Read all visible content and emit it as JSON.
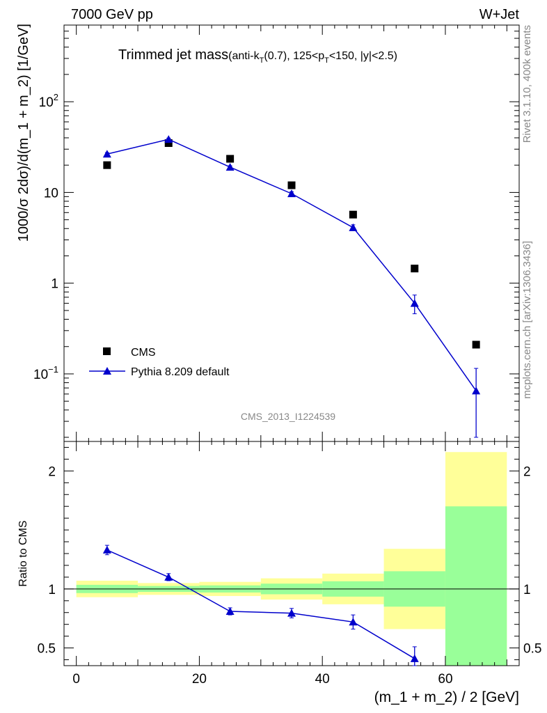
{
  "header": {
    "left": "7000 GeV pp",
    "right": "W+Jet"
  },
  "side_labels": {
    "rivet": "Rivet 3.1.10,  400k events",
    "source": "mcplots.cern.ch [arXiv:1306.3436]"
  },
  "analysis_tag": "CMS_2013_I1224539",
  "colors": {
    "cms": "#000000",
    "pythia": "#0000cc",
    "band_outer": "#ffff99",
    "band_inner": "#99ff99"
  },
  "chart_data": [
    {
      "type": "scatter",
      "title": "Trimmed jet mass",
      "title_main": "Trimmed jet mass",
      "title_sub_pre": "(anti-k",
      "title_sub_T1": "T",
      "title_sub_mid": "(0.7), 125<p",
      "title_sub_T2": "T",
      "title_sub_post": "<150, |y|<2.5)",
      "ylabel": "1000/σ 2dσ)/d(m_1 + m_2) [1/GeV]",
      "yscale": "log",
      "ylim": [
        0.018,
        700
      ],
      "xlim": [
        -2,
        72
      ],
      "y_ticks": [
        {
          "value": 0.1,
          "base": "10",
          "exp": "−1"
        },
        {
          "value": 1,
          "base": "1",
          "exp": ""
        },
        {
          "value": 10,
          "base": "10",
          "exp": ""
        },
        {
          "value": 100,
          "base": "10",
          "exp": "2"
        }
      ],
      "legend_position": "bottom-left",
      "series": [
        {
          "name": "CMS",
          "marker": "square",
          "x": [
            5,
            15,
            25,
            35,
            45,
            55,
            65
          ],
          "y": [
            20,
            35,
            23.5,
            12,
            5.7,
            1.45,
            0.21
          ]
        },
        {
          "name": "Pythia 8.209 default",
          "marker": "triangle",
          "line": true,
          "x": [
            5,
            15,
            25,
            35,
            45,
            55,
            65
          ],
          "y": [
            26.5,
            38.5,
            19,
            9.7,
            4.1,
            0.6,
            0.065
          ],
          "yerr_low": [
            1,
            1.2,
            0.7,
            0.5,
            0.3,
            0.14,
            0.045
          ],
          "yerr_high": [
            1,
            1.2,
            0.7,
            0.5,
            0.3,
            0.14,
            0.05
          ]
        }
      ]
    },
    {
      "type": "scatter",
      "title": "",
      "xlabel": "(m_1 + m_2) / 2 [GeV]",
      "ylabel": "Ratio to CMS",
      "ylim": [
        0.35,
        2.25
      ],
      "xlim": [
        -2,
        72
      ],
      "x_ticks": [
        0,
        20,
        40,
        60
      ],
      "y_ticks": [
        0.5,
        1,
        2
      ],
      "reference_line": 1,
      "bins": [
        [
          0,
          10
        ],
        [
          10,
          20
        ],
        [
          20,
          30
        ],
        [
          30,
          40
        ],
        [
          40,
          50
        ],
        [
          50,
          60
        ],
        [
          60,
          70
        ]
      ],
      "band_outer": [
        [
          0.93,
          1.07
        ],
        [
          0.95,
          1.05
        ],
        [
          0.94,
          1.06
        ],
        [
          0.91,
          1.09
        ],
        [
          0.87,
          1.13
        ],
        [
          0.66,
          1.34
        ],
        [
          0.0,
          2.16
        ]
      ],
      "band_inner": [
        [
          0.965,
          1.035
        ],
        [
          0.975,
          1.025
        ],
        [
          0.97,
          1.03
        ],
        [
          0.955,
          1.045
        ],
        [
          0.935,
          1.065
        ],
        [
          0.85,
          1.15
        ],
        [
          0.0,
          1.7
        ]
      ],
      "series": [
        {
          "name": "Pythia 8.209 default",
          "x": [
            5,
            15,
            25,
            35,
            45,
            55
          ],
          "y": [
            1.33,
            1.1,
            0.81,
            0.795,
            0.72,
            0.41
          ],
          "yerr_low": [
            0.04,
            0.03,
            0.03,
            0.04,
            0.06,
            0.07
          ],
          "yerr_high": [
            0.04,
            0.03,
            0.03,
            0.04,
            0.06,
            0.1
          ]
        }
      ]
    }
  ]
}
